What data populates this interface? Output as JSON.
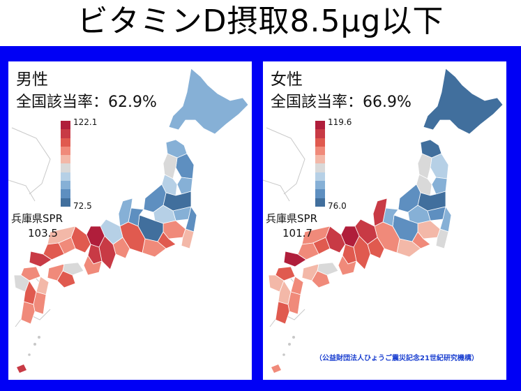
{
  "title": "ビタミンD摂取8.5μg以下",
  "colors": {
    "frame": "#0000f5",
    "scale": [
      "#b01e3b",
      "#c83a45",
      "#e05a4f",
      "#f08a7a",
      "#f3b8a8",
      "#d9d9d9",
      "#b6d0e6",
      "#86b0d6",
      "#5e8fc0",
      "#416f9d"
    ]
  },
  "panels": [
    {
      "sex": "男性",
      "rate_label": "全国該当率：62.9%",
      "scale_max": "122.1",
      "scale_min": "72.5",
      "hyogo_label": "兵庫県SPR",
      "hyogo_value": "103.5"
    },
    {
      "sex": "女性",
      "rate_label": "全国該当率：66.9%",
      "scale_max": "119.6",
      "scale_min": "76.0",
      "hyogo_label": "兵庫県SPR",
      "hyogo_value": "101.7"
    }
  ],
  "credit": "（公益財団法人ひょうご震災記念21世紀研究機構）"
}
